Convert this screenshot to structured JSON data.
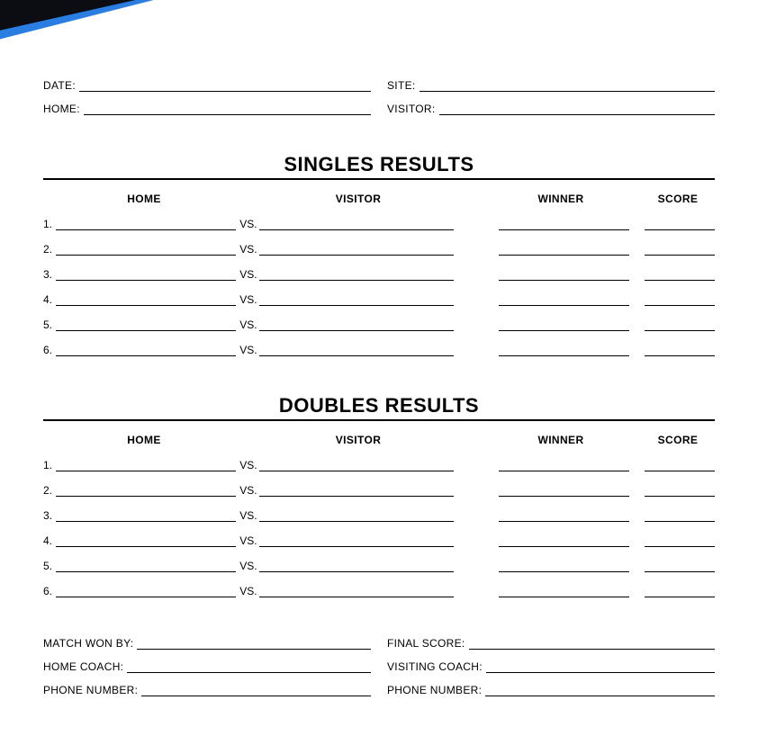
{
  "header": {
    "corner_colors": {
      "black": "#0b0d12",
      "blue": "#2a7de1"
    }
  },
  "top_fields": {
    "left": [
      {
        "label": "DATE:"
      },
      {
        "label": "HOME:"
      }
    ],
    "right": [
      {
        "label": "SITE:"
      },
      {
        "label": "VISITOR:"
      }
    ]
  },
  "sections": [
    {
      "title": "SINGLES RESULTS",
      "headers": {
        "home": "HOME",
        "visitor": "VISITOR",
        "winner": "WINNER",
        "score": "SCORE"
      },
      "rows": [
        {
          "num": "1.",
          "vs": "VS."
        },
        {
          "num": "2.",
          "vs": "VS."
        },
        {
          "num": "3.",
          "vs": "VS."
        },
        {
          "num": "4.",
          "vs": "VS."
        },
        {
          "num": "5.",
          "vs": "VS."
        },
        {
          "num": "6.",
          "vs": "VS."
        }
      ]
    },
    {
      "title": "DOUBLES RESULTS",
      "headers": {
        "home": "HOME",
        "visitor": "VISITOR",
        "winner": "WINNER",
        "score": "SCORE"
      },
      "rows": [
        {
          "num": "1.",
          "vs": "VS."
        },
        {
          "num": "2.",
          "vs": "VS."
        },
        {
          "num": "3.",
          "vs": "VS."
        },
        {
          "num": "4.",
          "vs": "VS."
        },
        {
          "num": "5.",
          "vs": "VS."
        },
        {
          "num": "6.",
          "vs": "VS."
        }
      ]
    }
  ],
  "bottom_fields": {
    "left": [
      {
        "label": "MATCH WON BY:"
      },
      {
        "label": "HOME COACH:"
      },
      {
        "label": "PHONE NUMBER:"
      }
    ],
    "right": [
      {
        "label": "FINAL SCORE:"
      },
      {
        "label": "VISITING COACH:"
      },
      {
        "label": "PHONE NUMBER:"
      }
    ]
  }
}
